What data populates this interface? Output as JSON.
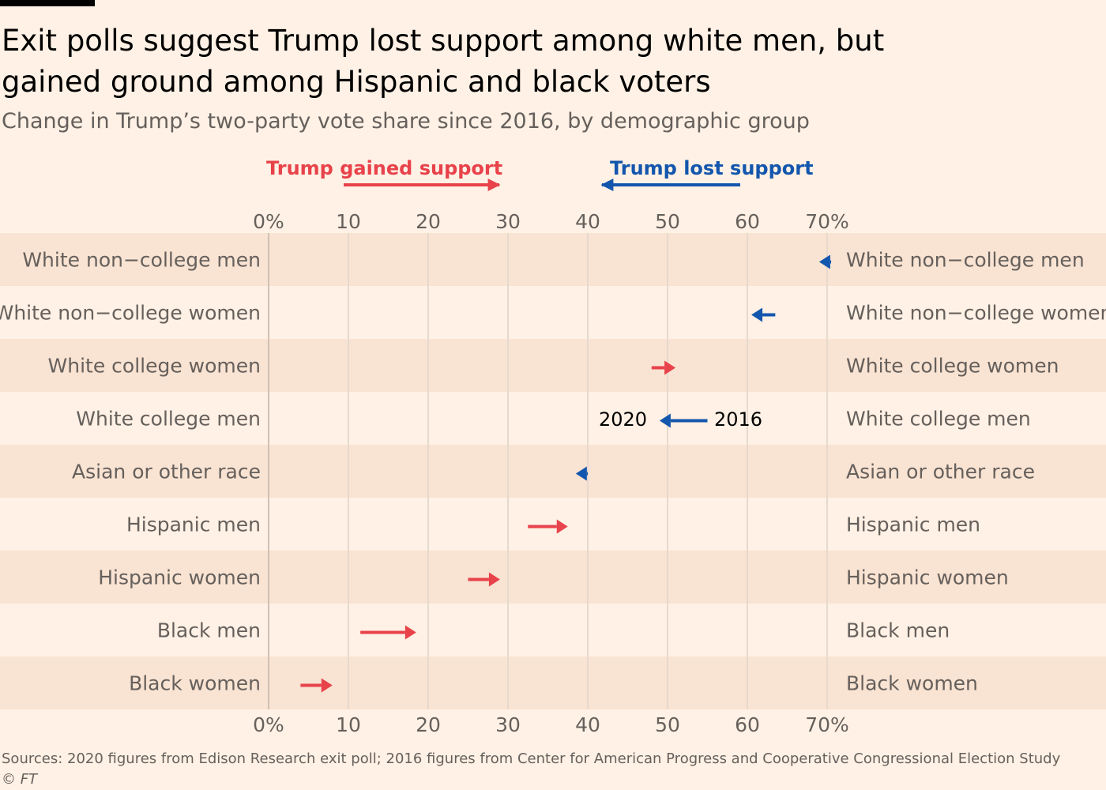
{
  "title": "Exit polls suggest Trump lost support among white men, but gained ground among Hispanic and black voters",
  "subtitle": "Change in Trump’s two-party vote share since 2016, by demographic group",
  "legend": {
    "gained_label": "Trump gained support",
    "lost_label": "Trump lost support",
    "label_2020": "2020",
    "label_2016": "2016"
  },
  "colors": {
    "gained": "#e8424a",
    "lost": "#1356ad",
    "band": "#f9e3d2",
    "grid": "#e6d9ce"
  },
  "source": "Sources: 2020 figures from Edison Research exit poll; 2016 figures from Center for American Progress and Cooperative Congressional Election Study",
  "credit": "© FT",
  "chart_data": {
    "type": "arrow",
    "title": "Change in Trump’s two-party vote share since 2016, by demographic group",
    "xlabel": "",
    "ylabel": "",
    "xlim": [
      0,
      70
    ],
    "ticks": [
      0,
      10,
      20,
      30,
      40,
      50,
      60,
      70
    ],
    "tick_labels": [
      "0%",
      "10",
      "20",
      "30",
      "40",
      "50",
      "60",
      "70%"
    ],
    "series": [
      {
        "group": "White non−college men",
        "y2016": 70.5,
        "y2020": 69
      },
      {
        "group": "White non−college women",
        "y2016": 63.5,
        "y2020": 60.5
      },
      {
        "group": "White college women",
        "y2016": 48,
        "y2020": 51
      },
      {
        "group": "White college men",
        "y2016": 55,
        "y2020": 49
      },
      {
        "group": "Asian or other race",
        "y2016": 40,
        "y2020": 38.5
      },
      {
        "group": "Hispanic men",
        "y2016": 32.5,
        "y2020": 37.5
      },
      {
        "group": "Hispanic women",
        "y2016": 25,
        "y2020": 29
      },
      {
        "group": "Black men",
        "y2016": 11.5,
        "y2020": 18.5
      },
      {
        "group": "Black women",
        "y2016": 4,
        "y2020": 8
      }
    ]
  }
}
